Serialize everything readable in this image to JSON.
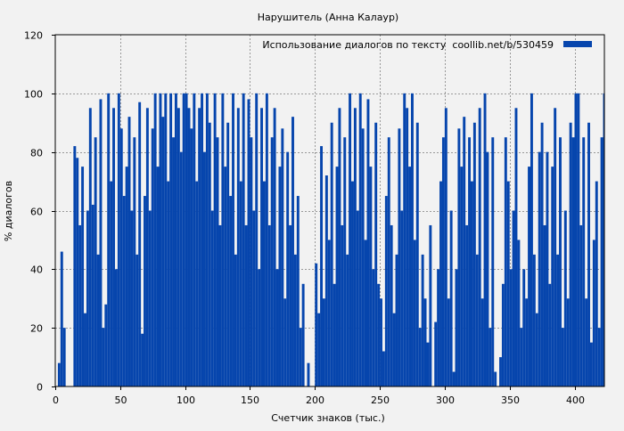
{
  "chart_data": {
    "type": "bar",
    "title": "Нарушитель (Анна Калаур)",
    "xlabel": "Счетчик знаков (тыс.)",
    "ylabel": "% диалогов",
    "xlim": [
      0,
      423
    ],
    "ylim": [
      0,
      120
    ],
    "xticks": [
      0,
      50,
      100,
      150,
      200,
      250,
      300,
      350,
      400
    ],
    "yticks": [
      0,
      20,
      40,
      60,
      80,
      100,
      120
    ],
    "grid": true,
    "legend_position": "top-right",
    "color": "#0645ad",
    "series": [
      {
        "name": "Использование диалогов по тексту  coollib.net/b/530459",
        "x": [
          0,
          2,
          4,
          6,
          8,
          10,
          12,
          14,
          16,
          18,
          20,
          22,
          24,
          26,
          28,
          30,
          32,
          34,
          36,
          38,
          40,
          42,
          44,
          46,
          48,
          50,
          52,
          54,
          56,
          58,
          60,
          62,
          64,
          66,
          68,
          70,
          72,
          74,
          76,
          78,
          80,
          82,
          84,
          86,
          88,
          90,
          92,
          94,
          96,
          98,
          100,
          102,
          104,
          106,
          108,
          110,
          112,
          114,
          116,
          118,
          120,
          122,
          124,
          126,
          128,
          130,
          132,
          134,
          136,
          138,
          140,
          142,
          144,
          146,
          148,
          150,
          152,
          154,
          156,
          158,
          160,
          162,
          164,
          166,
          168,
          170,
          172,
          174,
          176,
          178,
          180,
          182,
          184,
          186,
          188,
          190,
          192,
          194,
          196,
          198,
          200,
          202,
          204,
          206,
          208,
          210,
          212,
          214,
          216,
          218,
          220,
          222,
          224,
          226,
          228,
          230,
          232,
          234,
          236,
          238,
          240,
          242,
          244,
          246,
          248,
          250,
          252,
          254,
          256,
          258,
          260,
          262,
          264,
          266,
          268,
          270,
          272,
          274,
          276,
          278,
          280,
          282,
          284,
          286,
          288,
          290,
          292,
          294,
          296,
          298,
          300,
          302,
          304,
          306,
          308,
          310,
          312,
          314,
          316,
          318,
          320,
          322,
          324,
          326,
          328,
          330,
          332,
          334,
          336,
          338,
          340,
          342,
          344,
          346,
          348,
          350,
          352,
          354,
          356,
          358,
          360,
          362,
          364,
          366,
          368,
          370,
          372,
          374,
          376,
          378,
          380,
          382,
          384,
          386,
          388,
          390,
          392,
          394,
          396,
          398,
          400,
          402,
          404,
          406,
          408,
          410,
          412,
          414,
          416,
          418,
          420,
          422
        ],
        "values": [
          0,
          8,
          46,
          20,
          0,
          0,
          0,
          82,
          78,
          55,
          75,
          25,
          60,
          95,
          62,
          85,
          45,
          98,
          20,
          28,
          100,
          70,
          95,
          40,
          100,
          88,
          65,
          75,
          92,
          60,
          85,
          45,
          97,
          18,
          65,
          95,
          60,
          88,
          100,
          75,
          100,
          92,
          100,
          70,
          100,
          85,
          100,
          95,
          80,
          100,
          100,
          95,
          88,
          100,
          70,
          95,
          100,
          80,
          100,
          90,
          60,
          100,
          85,
          55,
          100,
          75,
          90,
          65,
          100,
          45,
          95,
          70,
          100,
          55,
          98,
          85,
          60,
          100,
          40,
          95,
          70,
          100,
          55,
          85,
          95,
          40,
          75,
          88,
          30,
          80,
          55,
          92,
          45,
          65,
          20,
          35,
          0,
          8,
          0,
          0,
          42,
          25,
          82,
          30,
          72,
          50,
          90,
          35,
          75,
          95,
          55,
          85,
          45,
          100,
          70,
          95,
          60,
          100,
          88,
          50,
          98,
          75,
          40,
          90,
          35,
          30,
          12,
          65,
          85,
          55,
          25,
          45,
          88,
          60,
          100,
          95,
          75,
          100,
          50,
          90,
          20,
          45,
          30,
          15,
          55,
          0,
          22,
          40,
          70,
          85,
          95,
          30,
          60,
          5,
          40,
          88,
          75,
          92,
          55,
          85,
          70,
          90,
          45,
          95,
          30,
          100,
          80,
          20,
          85,
          5,
          0,
          10,
          35,
          85,
          70,
          40,
          60,
          95,
          50,
          20,
          40,
          30,
          75,
          100,
          45,
          25,
          80,
          90,
          55,
          80,
          35,
          75,
          95,
          45,
          85,
          20,
          60,
          30,
          90,
          85,
          100,
          100,
          55,
          85,
          30,
          90,
          15,
          50,
          70,
          20,
          85,
          100
        ]
      }
    ]
  }
}
